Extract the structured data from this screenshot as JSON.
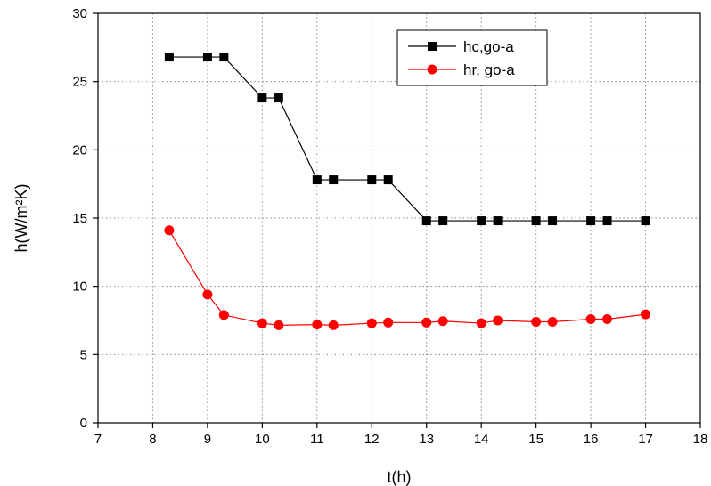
{
  "chart_data": {
    "type": "line",
    "title": "",
    "xlabel": "t(h)",
    "ylabel": "h(W/m²K)",
    "xlim": [
      7,
      18
    ],
    "ylim": [
      0,
      30
    ],
    "xticks": [
      7,
      8,
      9,
      10,
      11,
      12,
      13,
      14,
      15,
      16,
      17,
      18
    ],
    "yticks": [
      0,
      5,
      10,
      15,
      20,
      25,
      30
    ],
    "grid": "dotted",
    "legend_position": "top-right",
    "series": [
      {
        "name": "hc,go-a",
        "color": "#000000",
        "marker": "square",
        "x": [
          8.3,
          9,
          9.3,
          10,
          10.3,
          11,
          11.3,
          12,
          12.3,
          13,
          13.3,
          14,
          14.3,
          15,
          15.3,
          16,
          16.3,
          17
        ],
        "y": [
          26.8,
          26.8,
          26.8,
          23.8,
          23.8,
          17.8,
          17.8,
          17.8,
          17.8,
          14.8,
          14.8,
          14.8,
          14.8,
          14.8,
          14.8,
          14.8,
          14.8,
          14.8
        ]
      },
      {
        "name": "hr, go-a",
        "color": "#ff0000",
        "marker": "circle",
        "x": [
          8.3,
          9,
          9.3,
          10,
          10.3,
          11,
          11.3,
          12,
          12.3,
          13,
          13.3,
          14,
          14.3,
          15,
          15.3,
          16,
          16.3,
          17
        ],
        "y": [
          14.1,
          9.4,
          7.9,
          7.3,
          7.15,
          7.2,
          7.15,
          7.3,
          7.35,
          7.35,
          7.45,
          7.3,
          7.5,
          7.4,
          7.4,
          7.6,
          7.6,
          7.95
        ]
      }
    ]
  }
}
